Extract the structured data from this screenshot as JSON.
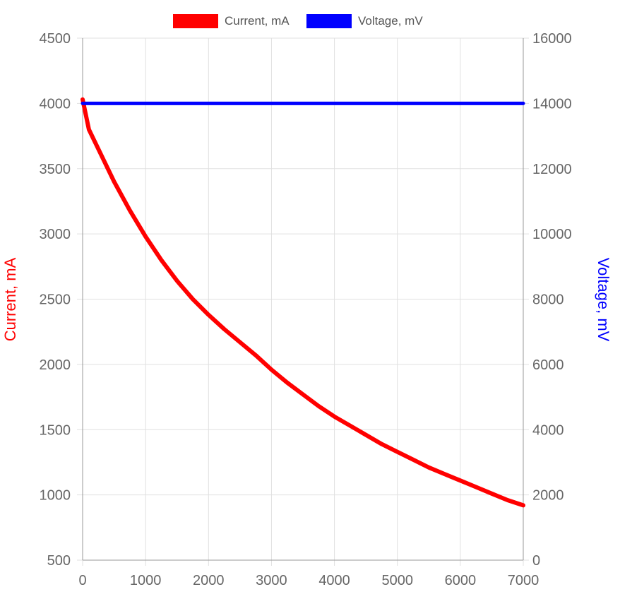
{
  "chart_data": {
    "type": "line",
    "xlim": [
      0,
      7000
    ],
    "x_ticks": [
      "0",
      "1000",
      "2000",
      "3000",
      "4000",
      "5000",
      "6000",
      "7000"
    ],
    "y_left": {
      "label": "Current, mA",
      "ylim": [
        500,
        4500
      ],
      "ticks": [
        "500",
        "1000",
        "1500",
        "2000",
        "2500",
        "3000",
        "3500",
        "4000",
        "4500"
      ]
    },
    "y_right": {
      "label": "Voltage, mV",
      "ylim": [
        0,
        16000
      ],
      "ticks": [
        "0",
        "2000",
        "4000",
        "6000",
        "8000",
        "10000",
        "12000",
        "14000",
        "16000"
      ]
    },
    "grid": true,
    "legend_position": "top-center",
    "series": [
      {
        "name": "Current, mA",
        "axis": "left",
        "color": "#ff0000",
        "points": [
          [
            0,
            4030
          ],
          [
            100,
            3800
          ],
          [
            250,
            3650
          ],
          [
            500,
            3400
          ],
          [
            750,
            3180
          ],
          [
            1000,
            2980
          ],
          [
            1250,
            2800
          ],
          [
            1500,
            2640
          ],
          [
            1750,
            2500
          ],
          [
            2000,
            2380
          ],
          [
            2250,
            2270
          ],
          [
            2500,
            2170
          ],
          [
            2750,
            2070
          ],
          [
            3000,
            1960
          ],
          [
            3250,
            1860
          ],
          [
            3500,
            1770
          ],
          [
            3750,
            1680
          ],
          [
            4000,
            1600
          ],
          [
            4250,
            1530
          ],
          [
            4500,
            1460
          ],
          [
            4750,
            1390
          ],
          [
            5000,
            1330
          ],
          [
            5250,
            1270
          ],
          [
            5500,
            1210
          ],
          [
            5750,
            1160
          ],
          [
            6000,
            1110
          ],
          [
            6250,
            1060
          ],
          [
            6500,
            1010
          ],
          [
            6750,
            960
          ],
          [
            7000,
            920
          ]
        ]
      },
      {
        "name": "Voltage, mV",
        "axis": "right",
        "color": "#0000ff",
        "points": [
          [
            0,
            14000
          ],
          [
            7000,
            14000
          ]
        ]
      }
    ]
  }
}
